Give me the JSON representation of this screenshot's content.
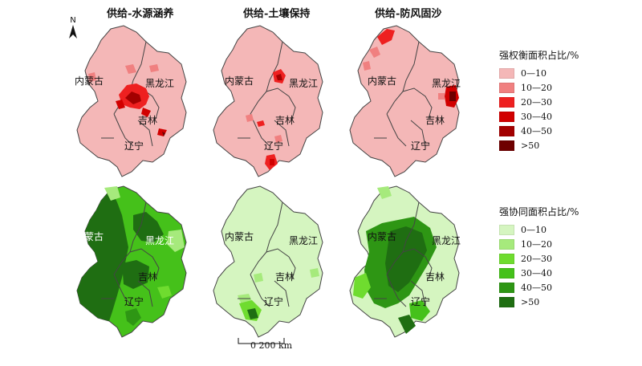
{
  "panel_titles": [
    "供给-水源涵养",
    "供给-土壤保持",
    "供给-防风固沙"
  ],
  "province_labels": {
    "neimenggu": "内蒙古",
    "heilongjiang": "黑龙江",
    "jilin": "吉林",
    "liaoning": "辽宁"
  },
  "north_label": "N",
  "scale": {
    "zero": "0",
    "distance": "200 km"
  },
  "legend_red": {
    "title": "强权衡面积占比/%",
    "items": [
      {
        "label": "0—10",
        "color": "#f4b7b7"
      },
      {
        "label": "10—20",
        "color": "#f08080"
      },
      {
        "label": "20—30",
        "color": "#ee2020"
      },
      {
        "label": "30—40",
        "color": "#d10000"
      },
      {
        "label": "40—50",
        "color": "#a30000"
      },
      {
        "label": ">50",
        "color": "#6e0000"
      }
    ]
  },
  "legend_green": {
    "title": "强协同面积占比/%",
    "items": [
      {
        "label": "0—10",
        "color": "#d5f5c0"
      },
      {
        "label": "10—20",
        "color": "#a6ea7c"
      },
      {
        "label": "20—30",
        "color": "#6fdc2f"
      },
      {
        "label": "30—40",
        "color": "#45c11a"
      },
      {
        "label": "40—50",
        "color": "#2e9614"
      },
      {
        "label": ">50",
        "color": "#1f6e12"
      }
    ]
  }
}
